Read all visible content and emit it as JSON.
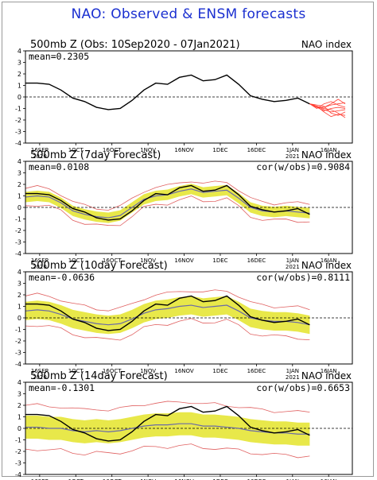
{
  "title": "NAO: Observed & ENSM forecasts",
  "chart_data": [
    {
      "type": "line",
      "title": "500mb Z (Obs: 10Sep2020 - 07Jan2021)",
      "index_label": "NAO index",
      "mean_label": "mean=0.2305",
      "cor_label": "",
      "ylim": [
        -4,
        4
      ],
      "yticks": [
        "4",
        "3",
        "2",
        "1",
        "0",
        "-1",
        "-2",
        "-3",
        "-4"
      ],
      "xticks": [
        "16SEP",
        "1OCT",
        "16OCT",
        "1NOV",
        "16NOV",
        "1DEC",
        "16DEC",
        "1JAN",
        "16JAN"
      ],
      "xyears": [
        "2020",
        "",
        "",
        "",
        "",
        "",
        "",
        "2021",
        ""
      ],
      "x": [
        0,
        5,
        10,
        15,
        20,
        25,
        30,
        35,
        40,
        45,
        50,
        55,
        60,
        65,
        70,
        75,
        80,
        85,
        90,
        95,
        100,
        105,
        110,
        115,
        120
      ],
      "series": [
        {
          "values": [
            1.2,
            1.2,
            1.1,
            0.6,
            -0.1,
            -0.4,
            -0.9,
            -1.1,
            -1.0,
            -0.3,
            0.6,
            1.2,
            1.1,
            1.7,
            1.9,
            1.4,
            1.5,
            1.9,
            1.1,
            0.1,
            -0.2,
            -0.4,
            -0.3,
            -0.1,
            -0.6
          ]
        }
      ],
      "forecast_x": [
        120,
        123,
        126,
        129,
        132,
        135
      ],
      "forecast_members": [
        [
          -0.6,
          -0.9,
          -0.9,
          -0.7,
          -0.6,
          -0.5
        ],
        [
          -0.6,
          -0.8,
          -1.1,
          -1.3,
          -1.2,
          -1.1
        ],
        [
          -0.6,
          -0.9,
          -1.2,
          -1.0,
          -0.9,
          -1.0
        ],
        [
          -0.6,
          -0.7,
          -0.8,
          -1.4,
          -1.6,
          -1.3
        ],
        [
          -0.6,
          -1.0,
          -0.6,
          -0.4,
          -0.7,
          -0.9
        ],
        [
          -0.6,
          -0.8,
          -1.3,
          -1.7,
          -1.5,
          -1.6
        ],
        [
          -0.6,
          -0.9,
          -0.9,
          -0.6,
          -0.2,
          -0.6
        ],
        [
          -0.6,
          -0.8,
          -1.0,
          -1.1,
          -1.4,
          -1.8
        ]
      ]
    },
    {
      "type": "line",
      "title": "500mb Z (7day Forecast)",
      "index_label": "NAO index",
      "mean_label": "mean=0.0108",
      "cor_label": "cor(w/obs)=0.9084",
      "ylim": [
        -4,
        4
      ],
      "yticks": [
        "4",
        "3",
        "2",
        "1",
        "0",
        "-1",
        "-2",
        "-3",
        "-4"
      ],
      "xticks": [
        "16SEP",
        "1OCT",
        "16OCT",
        "1NOV",
        "16NOV",
        "1DEC",
        "16DEC",
        "1JAN",
        "16JAN"
      ],
      "xyears": [
        "2020",
        "",
        "",
        "",
        "",
        "",
        "",
        "2021",
        ""
      ],
      "x": [
        0,
        5,
        10,
        15,
        20,
        25,
        30,
        35,
        40,
        45,
        50,
        55,
        60,
        65,
        70,
        75,
        80,
        85,
        90,
        95,
        100,
        105,
        110,
        115,
        120
      ],
      "series": [
        {
          "name": "obs",
          "values": [
            1.2,
            1.2,
            1.1,
            0.6,
            -0.1,
            -0.4,
            -0.9,
            -1.1,
            -1.0,
            -0.3,
            0.6,
            1.2,
            1.1,
            1.7,
            1.9,
            1.4,
            1.5,
            1.9,
            1.1,
            0.1,
            -0.2,
            -0.4,
            -0.3,
            -0.1,
            -0.6
          ]
        },
        {
          "name": "mean",
          "values": [
            0.9,
            1.0,
            0.9,
            0.4,
            -0.3,
            -0.6,
            -0.8,
            -0.9,
            -0.7,
            0.0,
            0.7,
            1.0,
            1.1,
            1.4,
            1.6,
            1.3,
            1.4,
            1.5,
            0.8,
            0.0,
            -0.3,
            -0.4,
            -0.3,
            -0.4,
            -0.5
          ]
        }
      ],
      "spread": 0.45,
      "envelope": 0.75
    },
    {
      "type": "line",
      "title": "500mb Z (10day Forecast)",
      "index_label": "NAO index",
      "mean_label": "mean=-0.0636",
      "cor_label": "cor(w/obs)=0.8111",
      "ylim": [
        -4,
        4
      ],
      "yticks": [
        "4",
        "3",
        "2",
        "1",
        "0",
        "-1",
        "-2",
        "-3",
        "-4"
      ],
      "xticks": [
        "16SEP",
        "1OCT",
        "16OCT",
        "1NOV",
        "16NOV",
        "1DEC",
        "16DEC",
        "1JAN",
        "16JAN"
      ],
      "xyears": [
        "2020",
        "",
        "",
        "",
        "",
        "",
        "",
        "2021",
        ""
      ],
      "x": [
        0,
        5,
        10,
        15,
        20,
        25,
        30,
        35,
        40,
        45,
        50,
        55,
        60,
        65,
        70,
        75,
        80,
        85,
        90,
        95,
        100,
        105,
        110,
        115,
        120
      ],
      "series": [
        {
          "name": "obs",
          "values": [
            1.2,
            1.2,
            1.1,
            0.6,
            -0.1,
            -0.4,
            -0.9,
            -1.1,
            -1.0,
            -0.3,
            0.6,
            1.2,
            1.1,
            1.7,
            1.9,
            1.4,
            1.5,
            1.9,
            1.1,
            0.1,
            -0.2,
            -0.4,
            -0.3,
            -0.1,
            -0.6
          ]
        },
        {
          "name": "mean",
          "values": [
            0.6,
            0.7,
            0.6,
            0.3,
            -0.1,
            -0.3,
            -0.5,
            -0.6,
            -0.5,
            -0.1,
            0.4,
            0.7,
            0.8,
            1.0,
            1.1,
            0.9,
            1.0,
            1.1,
            0.6,
            0.0,
            -0.2,
            -0.3,
            -0.3,
            -0.4,
            -0.6
          ]
        }
      ],
      "spread": 0.8,
      "envelope": 1.3
    },
    {
      "type": "line",
      "title": "500mb Z (14day Forecast)",
      "index_label": "NAO index",
      "mean_label": "mean=-0.1301",
      "cor_label": "cor(w/obs)=0.6653",
      "ylim": [
        -4,
        4
      ],
      "yticks": [
        "4",
        "3",
        "2",
        "1",
        "0",
        "-1",
        "-2",
        "-3",
        "-4"
      ],
      "xticks": [
        "16SEP",
        "1OCT",
        "16OCT",
        "1NOV",
        "16NOV",
        "1DEC",
        "16DEC",
        "1JAN",
        "16JAN"
      ],
      "xyears": [
        "2020",
        "",
        "",
        "",
        "",
        "",
        "",
        "2021",
        ""
      ],
      "x": [
        0,
        5,
        10,
        15,
        20,
        25,
        30,
        35,
        40,
        45,
        50,
        55,
        60,
        65,
        70,
        75,
        80,
        85,
        90,
        95,
        100,
        105,
        110,
        115,
        120
      ],
      "series": [
        {
          "name": "obs",
          "values": [
            1.2,
            1.2,
            1.1,
            0.6,
            -0.1,
            -0.4,
            -0.9,
            -1.1,
            -1.0,
            -0.3,
            0.6,
            1.2,
            1.1,
            1.7,
            1.9,
            1.4,
            1.5,
            1.9,
            1.1,
            0.1,
            -0.2,
            -0.4,
            -0.3,
            -0.1,
            -0.6
          ]
        },
        {
          "name": "mean",
          "values": [
            0.1,
            0.1,
            0.0,
            0.0,
            -0.2,
            -0.3,
            -0.2,
            -0.3,
            -0.2,
            0.0,
            0.2,
            0.3,
            0.3,
            0.4,
            0.4,
            0.2,
            0.2,
            0.1,
            0.0,
            -0.2,
            -0.3,
            -0.4,
            -0.4,
            -0.5,
            -0.5
          ]
        }
      ],
      "spread": 1.0,
      "envelope": 1.9
    }
  ],
  "colors": {
    "title": "#1a2fd0",
    "obs": "#000000",
    "ensemble_mean": "#6a6aa8",
    "spread_fill": "#e8e84a",
    "envelope": "#e06060",
    "forecast_members": "#ff3b30",
    "zero_line": "#000000"
  }
}
